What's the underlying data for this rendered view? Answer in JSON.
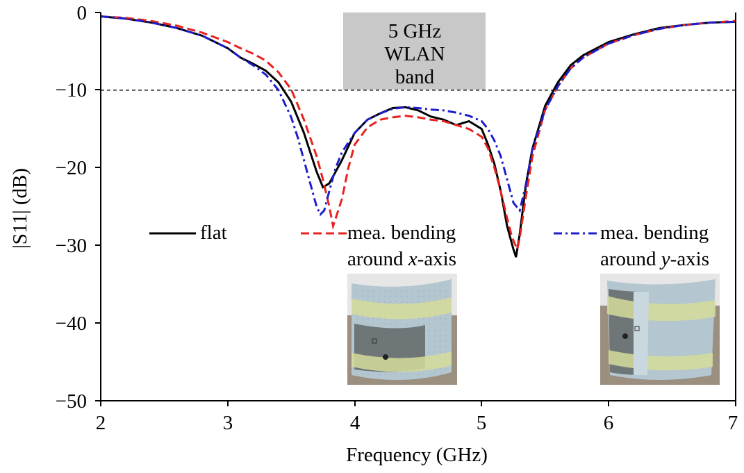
{
  "chart_data": {
    "type": "line",
    "xlabel": "Frequency (GHz)",
    "ylabel": "|S11| (dB)",
    "xlim": [
      2,
      7
    ],
    "ylim": [
      -50,
      0
    ],
    "xticks": [
      "2",
      "3",
      "4",
      "5",
      "6",
      "7"
    ],
    "yticks": [
      "0",
      "−10",
      "−20",
      "−30",
      "−40",
      "−50"
    ],
    "grid": false,
    "reference_line": {
      "y": -10,
      "style": "dashed"
    },
    "band_box": {
      "lines": [
        "5 GHz",
        "WLAN",
        "band"
      ],
      "x_range": [
        4.9,
        6.0
      ],
      "y_range": [
        -10,
        -0.1
      ]
    },
    "legend": [
      {
        "key": "flat",
        "label_lines": [
          "flat"
        ]
      },
      {
        "key": "x",
        "label_lines": [
          "mea. bending",
          "around x-axis"
        ]
      },
      {
        "key": "y",
        "label_lines": [
          "mea. bending",
          "around y-axis"
        ]
      }
    ],
    "series": [
      {
        "name": "flat",
        "color": "#000000",
        "dash": "solid",
        "x": [
          2.0,
          2.2,
          2.4,
          2.6,
          2.8,
          3.0,
          3.1,
          3.2,
          3.3,
          3.4,
          3.5,
          3.6,
          3.65,
          3.7,
          3.75,
          3.8,
          3.85,
          3.9,
          4.0,
          4.1,
          4.2,
          4.3,
          4.4,
          4.5,
          4.6,
          4.7,
          4.8,
          4.9,
          5.0,
          5.05,
          5.1,
          5.15,
          5.2,
          5.25,
          5.27,
          5.3,
          5.35,
          5.4,
          5.5,
          5.6,
          5.7,
          5.8,
          6.0,
          6.2,
          6.4,
          6.6,
          6.8,
          7.0
        ],
        "y": [
          -0.5,
          -0.8,
          -1.3,
          -2.0,
          -3.0,
          -4.6,
          -5.8,
          -6.6,
          -7.5,
          -9.0,
          -11.5,
          -15.5,
          -18.0,
          -20.5,
          -22.5,
          -22.0,
          -20.5,
          -19.0,
          -15.5,
          -13.8,
          -13.0,
          -12.3,
          -12.2,
          -12.6,
          -13.4,
          -13.8,
          -14.5,
          -14.0,
          -15.0,
          -17.0,
          -19.5,
          -23.0,
          -27.5,
          -30.5,
          -31.5,
          -28.5,
          -22.0,
          -17.5,
          -12.0,
          -9.0,
          -6.8,
          -5.5,
          -3.8,
          -2.8,
          -2.0,
          -1.6,
          -1.3,
          -1.2
        ]
      },
      {
        "name": "mea. bending around x-axis",
        "color": "#e8221f",
        "dash": "dashed",
        "x": [
          2.0,
          2.2,
          2.4,
          2.6,
          2.8,
          3.0,
          3.1,
          3.2,
          3.3,
          3.4,
          3.5,
          3.6,
          3.7,
          3.75,
          3.8,
          3.83,
          3.86,
          3.9,
          3.95,
          4.0,
          4.1,
          4.2,
          4.3,
          4.4,
          4.5,
          4.6,
          4.7,
          4.8,
          4.9,
          5.0,
          5.05,
          5.1,
          5.15,
          5.2,
          5.24,
          5.28,
          5.3,
          5.35,
          5.4,
          5.5,
          5.6,
          5.7,
          5.8,
          6.0,
          6.2,
          6.4,
          6.6,
          6.8,
          7.0
        ],
        "y": [
          -0.5,
          -0.7,
          -1.1,
          -1.7,
          -2.6,
          -3.8,
          -4.6,
          -5.3,
          -6.2,
          -7.7,
          -9.9,
          -13.8,
          -18.5,
          -21.5,
          -25.0,
          -27.5,
          -26.0,
          -24.0,
          -20.0,
          -17.0,
          -14.8,
          -13.8,
          -13.5,
          -13.3,
          -13.5,
          -13.8,
          -14.0,
          -14.5,
          -15.0,
          -16.0,
          -17.5,
          -20.0,
          -23.0,
          -26.5,
          -29.0,
          -30.5,
          -29.0,
          -23.5,
          -18.5,
          -12.5,
          -9.5,
          -7.2,
          -5.8,
          -4.0,
          -2.9,
          -2.1,
          -1.6,
          -1.3,
          -1.1
        ]
      },
      {
        "name": "mea. bending around y-axis",
        "color": "#1d1dcc",
        "dash": "dashdot",
        "x": [
          2.0,
          2.2,
          2.4,
          2.6,
          2.8,
          3.0,
          3.1,
          3.2,
          3.3,
          3.4,
          3.5,
          3.55,
          3.6,
          3.65,
          3.7,
          3.73,
          3.76,
          3.8,
          3.85,
          3.9,
          4.0,
          4.1,
          4.2,
          4.3,
          4.4,
          4.5,
          4.6,
          4.7,
          4.8,
          4.9,
          5.0,
          5.05,
          5.1,
          5.15,
          5.2,
          5.25,
          5.3,
          5.35,
          5.4,
          5.5,
          5.6,
          5.7,
          5.8,
          6.0,
          6.2,
          6.4,
          6.6,
          6.8,
          7.0
        ],
        "y": [
          -0.5,
          -0.8,
          -1.3,
          -2.0,
          -3.0,
          -4.6,
          -5.8,
          -6.8,
          -8.0,
          -10.0,
          -13.5,
          -16.0,
          -19.0,
          -22.0,
          -25.0,
          -26.0,
          -25.5,
          -23.0,
          -20.0,
          -18.0,
          -15.5,
          -13.8,
          -13.0,
          -12.4,
          -12.2,
          -12.3,
          -12.5,
          -12.6,
          -12.9,
          -13.3,
          -14.0,
          -15.0,
          -16.5,
          -18.5,
          -21.5,
          -24.5,
          -25.5,
          -22.0,
          -17.5,
          -12.5,
          -9.5,
          -7.2,
          -5.8,
          -4.0,
          -2.9,
          -2.1,
          -1.6,
          -1.3,
          -1.2
        ]
      }
    ]
  }
}
